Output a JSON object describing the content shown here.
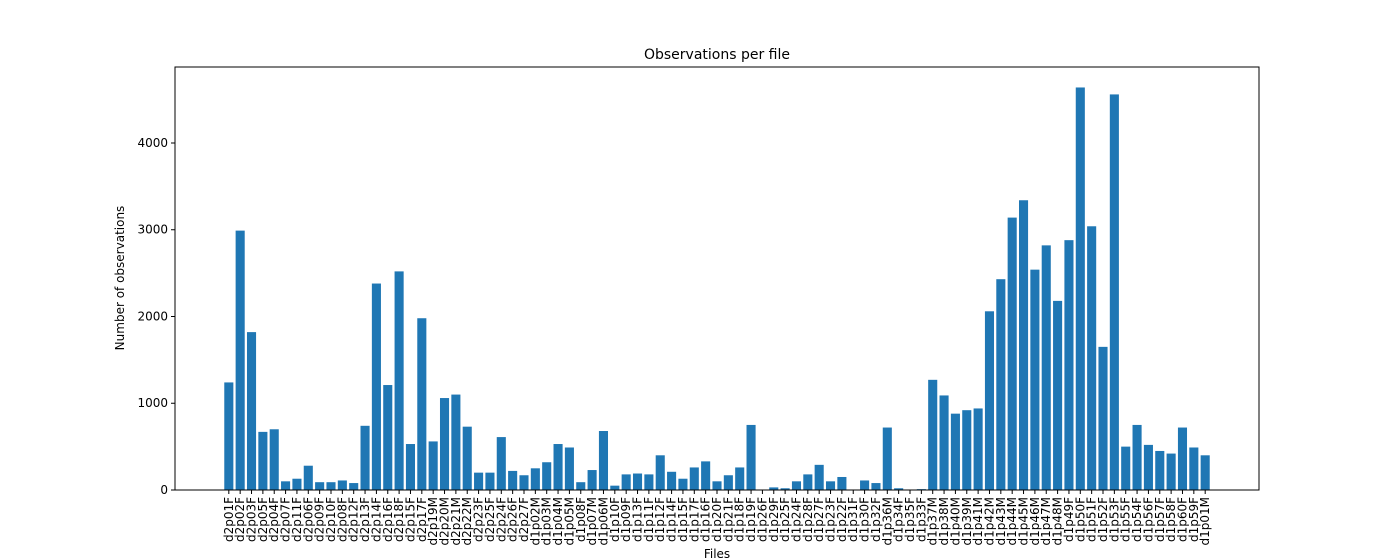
{
  "chart_data": {
    "type": "bar",
    "title": "Observations per file",
    "x_label": "Files",
    "y_label": "Number of observations",
    "categories": [
      "d2p01F",
      "d2p02F",
      "d2p03F",
      "d2p05F",
      "d2p04F",
      "d2p07F",
      "d2p11F",
      "d2p06F",
      "d2p09F",
      "d2p10F",
      "d2p08F",
      "d2p12F",
      "d2p13F",
      "d2p14F",
      "d2p16F",
      "d2p18F",
      "d2p15F",
      "d2p17F",
      "d2p19M",
      "d2p20M",
      "d2p21M",
      "d2p22M",
      "d2p23F",
      "d2p25F",
      "d2p24F",
      "d2p26F",
      "d2p27F",
      "d1p02M",
      "d1p03M",
      "d1p04M",
      "d1p05M",
      "d1p08F",
      "d1p07M",
      "d1p06M",
      "d1p10F",
      "d1p09F",
      "d1p13F",
      "d1p11F",
      "d1p12F",
      "d1p14F",
      "d1p15F",
      "d1p17F",
      "d1p16F",
      "d1p20F",
      "d1p21F",
      "d1p18F",
      "d1p19F",
      "d1p26F",
      "d1p29F",
      "d1p25F",
      "d1p24F",
      "d1p28F",
      "d1p27F",
      "d1p23F",
      "d1p22F",
      "d1p31F",
      "d1p30F",
      "d1p32F",
      "d1p36M",
      "d1p34F",
      "d1p35F",
      "d1p33F",
      "d1p37M",
      "d1p38M",
      "d1p40M",
      "d1p39M",
      "d1p41M",
      "d1p42M",
      "d1p43M",
      "d1p44M",
      "d1p45M",
      "d1p46M",
      "d1p47M",
      "d1p48M",
      "d1p49F",
      "d1p50F",
      "d1p51F",
      "d1p52F",
      "d1p53F",
      "d1p55F",
      "d1p54F",
      "d1p56F",
      "d1p57F",
      "d1p58F",
      "d1p60F",
      "d1p59F",
      "d1p01M"
    ],
    "values": [
      1240,
      2990,
      1820,
      670,
      700,
      100,
      130,
      280,
      90,
      90,
      110,
      80,
      740,
      2380,
      1210,
      2520,
      530,
      1980,
      560,
      1060,
      1100,
      730,
      200,
      200,
      610,
      220,
      170,
      250,
      320,
      530,
      490,
      90,
      230,
      680,
      50,
      180,
      190,
      180,
      400,
      210,
      130,
      260,
      330,
      100,
      170,
      260,
      750,
      5,
      30,
      20,
      100,
      180,
      290,
      100,
      150,
      5,
      110,
      80,
      720,
      20,
      5,
      10,
      1270,
      1090,
      880,
      920,
      940,
      2060,
      2430,
      3140,
      3340,
      2540,
      2820,
      2180,
      2880,
      4640,
      3040,
      1650,
      4560,
      500,
      750,
      520,
      450,
      420,
      720,
      490,
      400
    ],
    "color": "#1f77b4",
    "ylim": [
      0,
      4876
    ],
    "yticks": [
      0,
      1000,
      2000,
      3000,
      4000
    ],
    "grid": false
  }
}
